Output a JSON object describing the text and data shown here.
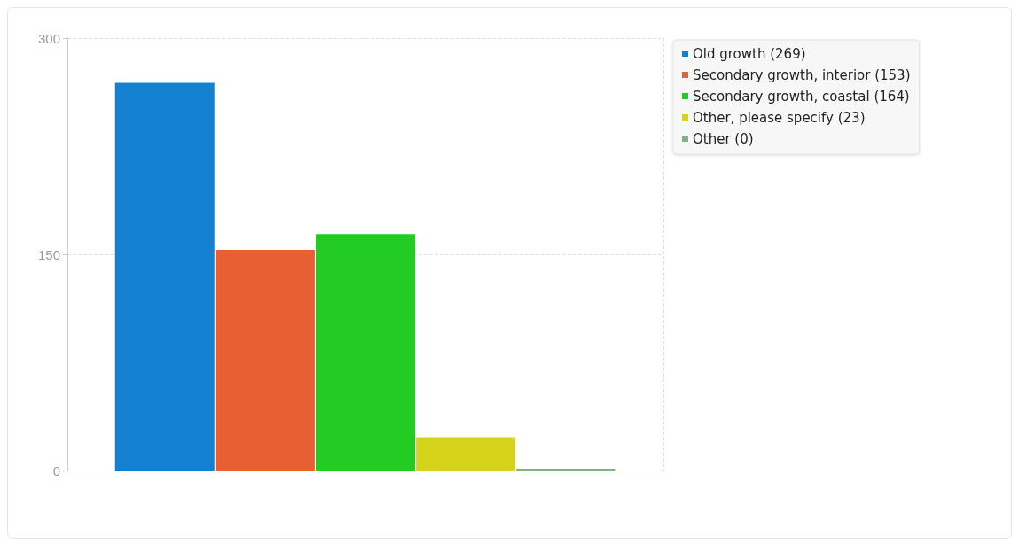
{
  "chart_data": {
    "type": "bar",
    "categories": [
      null
    ],
    "series": [
      {
        "name": "Old growth (269)",
        "color": "#1481d0",
        "values": [
          269
        ]
      },
      {
        "name": "Secondary growth, interior (153)",
        "color": "#e85f33",
        "values": [
          153
        ]
      },
      {
        "name": "Secondary growth, coastal (164)",
        "color": "#22cc22",
        "values": [
          164
        ]
      },
      {
        "name": "Other, please specify (23)",
        "color": "#d6d41a",
        "values": [
          23
        ]
      },
      {
        "name": "Other (0)",
        "color": "#7fb27f",
        "values": [
          0
        ]
      }
    ],
    "ylim": [
      0,
      300
    ],
    "yticks": [
      0,
      150,
      300
    ],
    "grid": true,
    "legend": "top right"
  }
}
